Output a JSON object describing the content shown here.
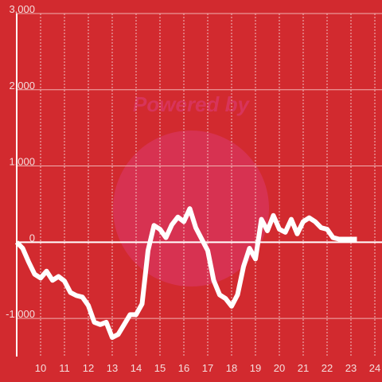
{
  "chart_data": {
    "type": "line",
    "watermark": "Powered by",
    "x": [
      9,
      9.25,
      9.5,
      9.75,
      10,
      10.25,
      10.5,
      10.75,
      11,
      11.25,
      11.5,
      11.75,
      12,
      12.25,
      12.5,
      12.75,
      13,
      13.25,
      13.5,
      13.75,
      14,
      14.25,
      14.5,
      14.75,
      15,
      15.25,
      15.5,
      15.75,
      16,
      16.25,
      16.5,
      16.75,
      17,
      17.25,
      17.5,
      17.75,
      18,
      18.25,
      18.5,
      18.75,
      19,
      19.25,
      19.5,
      19.75,
      20,
      20.25,
      20.5,
      20.75,
      21,
      21.25,
      21.5,
      21.75,
      22,
      22.25,
      22.5,
      22.75,
      23,
      23.25
    ],
    "values": [
      0,
      -80,
      -260,
      -420,
      -470,
      -380,
      -500,
      -450,
      -510,
      -660,
      -700,
      -720,
      -830,
      -1050,
      -1080,
      -1050,
      -1250,
      -1210,
      -1080,
      -950,
      -950,
      -810,
      -110,
      220,
      170,
      60,
      230,
      330,
      270,
      440,
      190,
      40,
      -110,
      -500,
      -690,
      -740,
      -840,
      -690,
      -320,
      -80,
      -220,
      300,
      150,
      350,
      170,
      130,
      300,
      110,
      270,
      320,
      270,
      190,
      170,
      60,
      40,
      40,
      40,
      40
    ],
    "color": "#ffffff",
    "xlim": [
      9,
      24.3
    ],
    "xticks": [
      10,
      11,
      12,
      13,
      14,
      15,
      16,
      17,
      18,
      19,
      20,
      21,
      22,
      23,
      24
    ],
    "ylim": [
      -1500,
      3000
    ],
    "yticks": [
      {
        "value": -1000,
        "label": "-1,000"
      },
      0,
      {
        "value": 1000,
        "label": "1,000"
      },
      {
        "value": 2000,
        "label": "2,000"
      },
      {
        "value": 3000,
        "label": "3,000"
      }
    ],
    "grid": true
  }
}
